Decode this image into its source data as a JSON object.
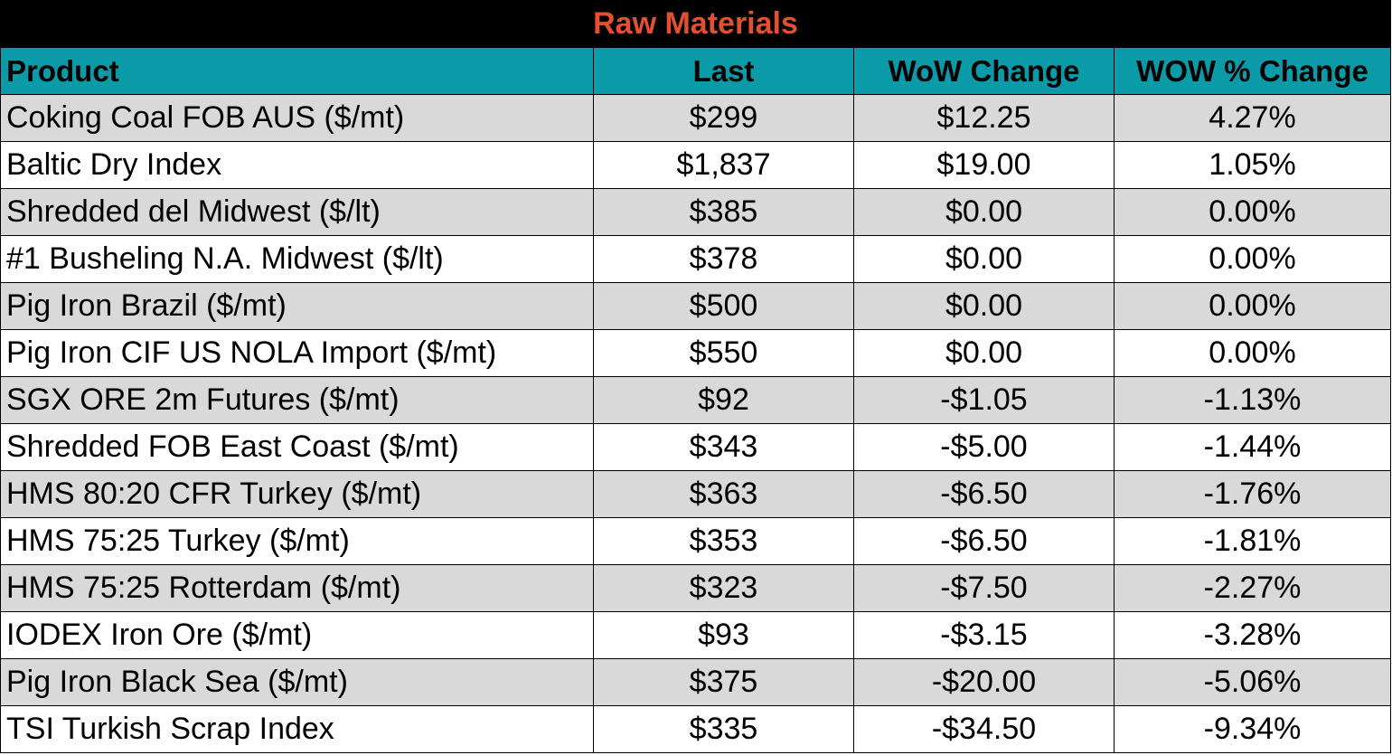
{
  "title": "Raw Materials",
  "colors": {
    "title_bg": "#000000",
    "title_text": "#e2502f",
    "header_bg": "#0b9aa8",
    "row_shade": "#d9d9d9",
    "row_plain": "#ffffff"
  },
  "headers": [
    "Product",
    "Last",
    "WoW Change",
    "WOW % Change"
  ],
  "rows": [
    [
      "Coking Coal FOB AUS ($/mt)",
      "$299",
      "$12.25",
      "4.27%"
    ],
    [
      "Baltic Dry Index",
      "$1,837",
      "$19.00",
      "1.05%"
    ],
    [
      "Shredded del  Midwest ($/lt)",
      "$385",
      "$0.00",
      "0.00%"
    ],
    [
      "#1 Busheling N.A. Midwest ($/lt)",
      "$378",
      "$0.00",
      "0.00%"
    ],
    [
      "Pig Iron Brazil ($/mt)",
      "$500",
      "$0.00",
      "0.00%"
    ],
    [
      "Pig Iron CIF US NOLA Import ($/mt)",
      "$550",
      "$0.00",
      "0.00%"
    ],
    [
      "SGX ORE 2m Futures ($/mt)",
      "$92",
      "-$1.05",
      "-1.13%"
    ],
    [
      "Shredded FOB East Coast ($/mt)",
      "$343",
      "-$5.00",
      "-1.44%"
    ],
    [
      "HMS 80:20 CFR Turkey ($/mt)",
      "$363",
      "-$6.50",
      "-1.76%"
    ],
    [
      "HMS 75:25 Turkey ($/mt)",
      "$353",
      "-$6.50",
      "-1.81%"
    ],
    [
      "HMS 75:25 Rotterdam ($/mt)",
      "$323",
      "-$7.50",
      "-2.27%"
    ],
    [
      "IODEX  Iron Ore ($/mt)",
      "$93",
      "-$3.15",
      "-3.28%"
    ],
    [
      "Pig Iron Black Sea ($/mt)",
      "$375",
      "-$20.00",
      "-5.06%"
    ],
    [
      "TSI Turkish Scrap Index",
      "$335",
      "-$34.50",
      "-9.34%"
    ]
  ]
}
